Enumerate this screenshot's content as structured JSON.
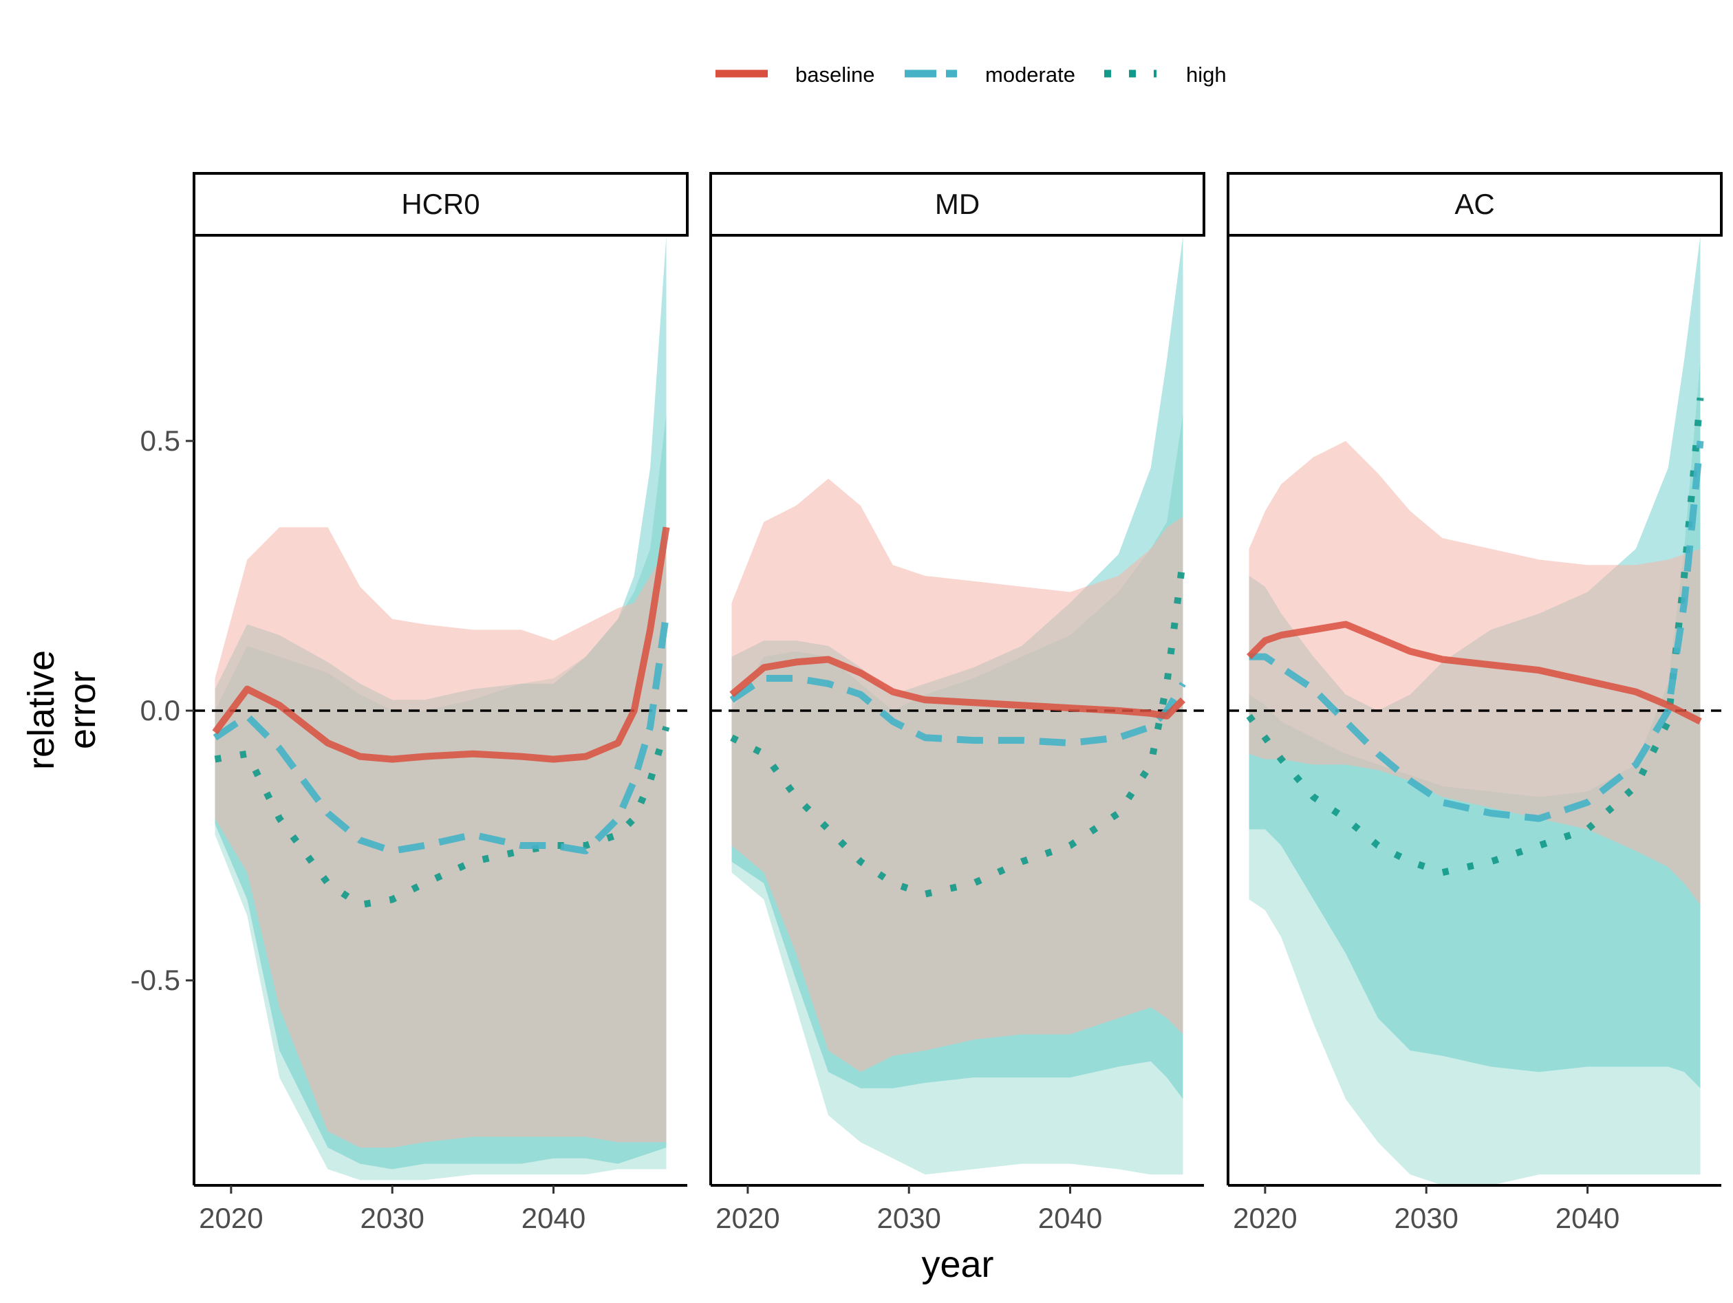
{
  "chart_data": {
    "type": "line",
    "xlabel": "year",
    "ylabel_lines": [
      "relative",
      "error"
    ],
    "ylim": [
      -0.88,
      0.88
    ],
    "xlim": [
      2017.7,
      2048.3
    ],
    "x_ticks": [
      2020,
      2030,
      2040
    ],
    "y_ticks": [
      -0.5,
      0.0,
      0.5
    ],
    "y_tick_labels": [
      "-0.5",
      "0.0",
      "0.5"
    ],
    "reference_line": 0,
    "legend": {
      "position": "top",
      "entries": [
        {
          "key": "baseline",
          "label": "baseline",
          "color": "#d9503f",
          "style": "solid"
        },
        {
          "key": "moderate",
          "label": "moderate",
          "color": "#45b2c6",
          "style": "dashed"
        },
        {
          "key": "high",
          "label": "high",
          "color": "#11998a",
          "style": "dotted"
        }
      ]
    },
    "colors": {
      "baseline": "#d9503f",
      "moderate": "#45b2c6",
      "high": "#11998a",
      "band_baseline": "#f6b4aa",
      "band_moderate": "#58c7c5",
      "band_high": "#90d7cb"
    },
    "panels": [
      {
        "title": "HCR0",
        "x": [
          2019,
          2021,
          2023,
          2026,
          2028,
          2030,
          2032,
          2035,
          2038,
          2040,
          2042,
          2044,
          2045,
          2046,
          2047
        ],
        "series": [
          {
            "name": "baseline",
            "median": [
              -0.04,
              0.04,
              0.01,
              -0.06,
              -0.085,
              -0.09,
              -0.085,
              -0.08,
              -0.085,
              -0.09,
              -0.085,
              -0.06,
              0.0,
              0.15,
              0.34
            ],
            "lower": [
              -0.2,
              -0.3,
              -0.55,
              -0.78,
              -0.81,
              -0.81,
              -0.8,
              -0.79,
              -0.79,
              -0.79,
              -0.79,
              -0.8,
              -0.8,
              -0.8,
              -0.8
            ],
            "upper": [
              0.06,
              0.28,
              0.34,
              0.34,
              0.23,
              0.17,
              0.16,
              0.15,
              0.15,
              0.13,
              0.16,
              0.19,
              0.2,
              0.25,
              0.3
            ]
          },
          {
            "name": "moderate",
            "median": [
              -0.05,
              -0.01,
              -0.07,
              -0.19,
              -0.24,
              -0.26,
              -0.25,
              -0.23,
              -0.25,
              -0.25,
              -0.26,
              -0.2,
              -0.13,
              -0.03,
              0.18
            ],
            "lower": [
              -0.21,
              -0.35,
              -0.63,
              -0.81,
              -0.84,
              -0.85,
              -0.84,
              -0.84,
              -0.84,
              -0.83,
              -0.83,
              -0.84,
              -0.83,
              -0.82,
              -0.81
            ],
            "upper": [
              0.04,
              0.16,
              0.14,
              0.09,
              0.05,
              0.02,
              0.02,
              0.04,
              0.05,
              0.05,
              0.1,
              0.17,
              0.25,
              0.45,
              0.88
            ]
          },
          {
            "name": "high",
            "median": [
              -0.09,
              -0.08,
              -0.2,
              -0.32,
              -0.36,
              -0.35,
              -0.32,
              -0.28,
              -0.26,
              -0.25,
              -0.25,
              -0.23,
              -0.2,
              -0.13,
              -0.03
            ],
            "lower": [
              -0.23,
              -0.38,
              -0.68,
              -0.85,
              -0.87,
              -0.87,
              -0.87,
              -0.86,
              -0.86,
              -0.86,
              -0.86,
              -0.85,
              -0.85,
              -0.85,
              -0.85
            ],
            "upper": [
              0.0,
              0.12,
              0.1,
              0.07,
              0.03,
              0.0,
              0.0,
              0.02,
              0.05,
              0.06,
              0.1,
              0.17,
              0.22,
              0.3,
              0.55
            ]
          }
        ]
      },
      {
        "title": "MD",
        "x": [
          2019,
          2021,
          2023,
          2025,
          2027,
          2029,
          2031,
          2034,
          2037,
          2040,
          2043,
          2045,
          2046,
          2047
        ],
        "series": [
          {
            "name": "baseline",
            "median": [
              0.03,
              0.08,
              0.09,
              0.095,
              0.07,
              0.035,
              0.02,
              0.015,
              0.01,
              0.005,
              0.0,
              -0.005,
              -0.01,
              0.02
            ],
            "lower": [
              -0.25,
              -0.3,
              -0.45,
              -0.63,
              -0.67,
              -0.64,
              -0.63,
              -0.61,
              -0.6,
              -0.6,
              -0.57,
              -0.55,
              -0.57,
              -0.6
            ],
            "upper": [
              0.2,
              0.35,
              0.38,
              0.43,
              0.38,
              0.27,
              0.25,
              0.24,
              0.23,
              0.22,
              0.25,
              0.3,
              0.34,
              0.36
            ]
          },
          {
            "name": "moderate",
            "median": [
              0.02,
              0.06,
              0.06,
              0.05,
              0.03,
              -0.02,
              -0.05,
              -0.055,
              -0.055,
              -0.06,
              -0.05,
              -0.03,
              0.0,
              0.05
            ],
            "lower": [
              -0.28,
              -0.32,
              -0.5,
              -0.67,
              -0.7,
              -0.7,
              -0.69,
              -0.68,
              -0.68,
              -0.68,
              -0.66,
              -0.65,
              -0.68,
              -0.72
            ],
            "upper": [
              0.1,
              0.13,
              0.13,
              0.12,
              0.08,
              0.03,
              0.05,
              0.08,
              0.12,
              0.2,
              0.29,
              0.45,
              0.65,
              0.88
            ]
          },
          {
            "name": "high",
            "median": [
              -0.05,
              -0.08,
              -0.16,
              -0.22,
              -0.28,
              -0.32,
              -0.34,
              -0.32,
              -0.28,
              -0.25,
              -0.19,
              -0.1,
              0.05,
              0.28
            ],
            "lower": [
              -0.3,
              -0.35,
              -0.55,
              -0.75,
              -0.8,
              -0.83,
              -0.86,
              -0.85,
              -0.84,
              -0.84,
              -0.85,
              -0.86,
              -0.86,
              -0.86
            ],
            "upper": [
              0.0,
              0.1,
              0.11,
              0.1,
              0.05,
              0.0,
              0.03,
              0.06,
              0.1,
              0.14,
              0.22,
              0.3,
              0.35,
              0.55
            ]
          }
        ]
      },
      {
        "title": "AC",
        "x": [
          2019,
          2020,
          2021,
          2023,
          2025,
          2027,
          2029,
          2031,
          2034,
          2037,
          2040,
          2043,
          2045,
          2046,
          2047
        ],
        "series": [
          {
            "name": "baseline",
            "median": [
              0.1,
              0.13,
              0.14,
              0.15,
              0.16,
              0.135,
              0.11,
              0.095,
              0.085,
              0.075,
              0.055,
              0.035,
              0.01,
              -0.005,
              -0.02
            ],
            "lower": [
              -0.08,
              -0.09,
              -0.09,
              -0.1,
              -0.1,
              -0.11,
              -0.13,
              -0.16,
              -0.18,
              -0.2,
              -0.22,
              -0.26,
              -0.29,
              -0.32,
              -0.36
            ],
            "upper": [
              0.3,
              0.37,
              0.42,
              0.47,
              0.5,
              0.44,
              0.37,
              0.32,
              0.3,
              0.28,
              0.27,
              0.27,
              0.28,
              0.29,
              0.3
            ]
          },
          {
            "name": "moderate",
            "median": [
              0.1,
              0.1,
              0.08,
              0.04,
              -0.02,
              -0.08,
              -0.13,
              -0.17,
              -0.19,
              -0.2,
              -0.17,
              -0.1,
              0.0,
              0.2,
              0.5
            ],
            "lower": [
              -0.22,
              -0.22,
              -0.25,
              -0.35,
              -0.45,
              -0.57,
              -0.63,
              -0.64,
              -0.66,
              -0.67,
              -0.66,
              -0.66,
              -0.66,
              -0.67,
              -0.7
            ],
            "upper": [
              0.25,
              0.23,
              0.18,
              0.1,
              0.03,
              0.0,
              0.03,
              0.09,
              0.15,
              0.18,
              0.22,
              0.3,
              0.45,
              0.65,
              0.88
            ]
          },
          {
            "name": "high",
            "median": [
              -0.01,
              -0.05,
              -0.09,
              -0.16,
              -0.2,
              -0.25,
              -0.28,
              -0.3,
              -0.28,
              -0.25,
              -0.22,
              -0.14,
              -0.02,
              0.25,
              0.58
            ],
            "lower": [
              -0.35,
              -0.37,
              -0.42,
              -0.58,
              -0.72,
              -0.8,
              -0.86,
              -0.88,
              -0.88,
              -0.86,
              -0.86,
              -0.86,
              -0.86,
              -0.86,
              -0.86
            ],
            "upper": [
              0.03,
              0.01,
              -0.02,
              -0.05,
              -0.08,
              -0.1,
              -0.12,
              -0.14,
              -0.15,
              -0.16,
              -0.15,
              -0.1,
              0.05,
              0.3,
              0.65
            ]
          }
        ]
      }
    ]
  }
}
